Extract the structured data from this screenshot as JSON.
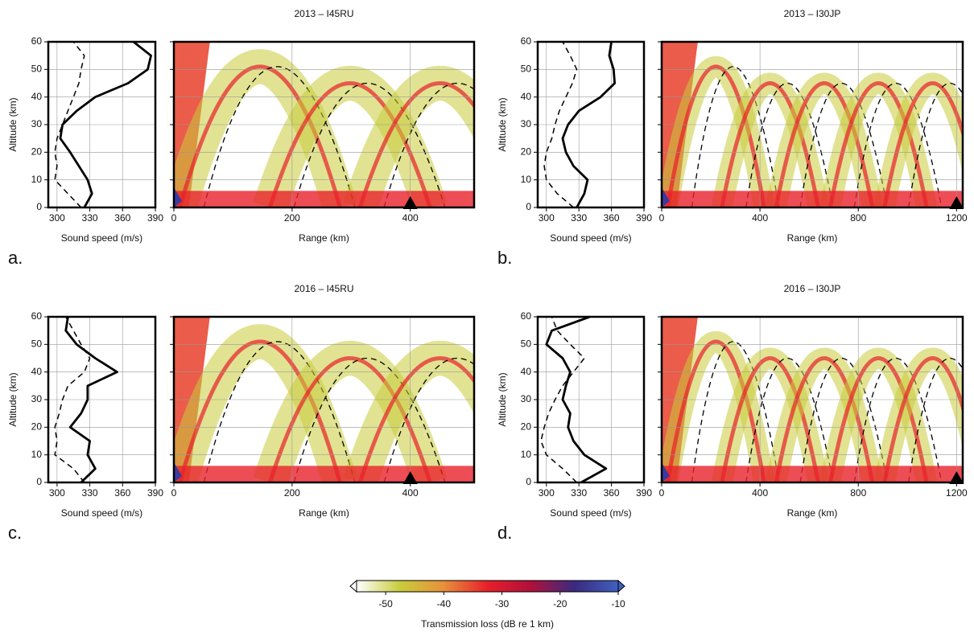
{
  "chart_data": [
    {
      "type": "line",
      "xlabel": "Sound speed (m/s)",
      "ylabel": "Altitude (km)",
      "xlim": [
        292,
        390
      ],
      "xticks": [
        300,
        330,
        360,
        390
      ],
      "ylim": [
        0,
        60
      ],
      "yticks": [
        0,
        10,
        20,
        30,
        40,
        50,
        60
      ],
      "grid": true,
      "y": [
        0,
        5,
        10,
        15,
        20,
        25,
        30,
        35,
        40,
        45,
        50,
        55,
        60
      ],
      "series": [
        {
          "color": "#000000",
          "dash": false,
          "values": [
            325,
            332,
            328,
            320,
            312,
            303,
            305,
            318,
            335,
            365,
            383,
            386,
            370
          ]
        },
        {
          "color": "#000000",
          "dash": true,
          "values": [
            322,
            310,
            298,
            300,
            298,
            300,
            305,
            310,
            315,
            320,
            322,
            325,
            315
          ]
        }
      ]
    },
    {
      "type": "heatmap",
      "title": "2013 – I45RU",
      "label": "a.",
      "xlabel": "Range (km)",
      "xlim": [
        0,
        508
      ],
      "xticks": [
        0,
        200,
        400
      ],
      "ylim": [
        0,
        60
      ],
      "yticks": [
        0,
        10,
        20,
        30,
        40,
        50,
        60
      ],
      "grid": true,
      "station": 400
    },
    {
      "type": "line",
      "xlabel": "Sound speed (m/s)",
      "ylabel": "Altitude (km)",
      "xlim": [
        292,
        390
      ],
      "xticks": [
        300,
        330,
        360,
        390
      ],
      "ylim": [
        0,
        60
      ],
      "yticks": [
        0,
        10,
        20,
        30,
        40,
        50,
        60
      ],
      "grid": true,
      "y": [
        0,
        5,
        10,
        15,
        20,
        25,
        30,
        35,
        40,
        45,
        50,
        55,
        60
      ],
      "series": [
        {
          "color": "#000000",
          "dash": false,
          "values": [
            328,
            335,
            338,
            325,
            318,
            315,
            320,
            330,
            350,
            363,
            362,
            358,
            360
          ]
        },
        {
          "color": "#000000",
          "dash": true,
          "values": [
            325,
            310,
            300,
            298,
            300,
            305,
            308,
            312,
            318,
            324,
            328,
            322,
            315
          ]
        }
      ]
    },
    {
      "type": "heatmap",
      "title": "2013 – I30JP",
      "label": "b.",
      "xlabel": "Range (km)",
      "xlim": [
        0,
        1225
      ],
      "xticks": [
        0,
        400,
        800,
        1200
      ],
      "ylim": [
        0,
        60
      ],
      "yticks": [
        0,
        10,
        20,
        30,
        40,
        50,
        60
      ],
      "grid": true,
      "station": 1200
    },
    {
      "type": "line",
      "xlabel": "Sound speed (m/s)",
      "ylabel": "Altitude (km)",
      "xlim": [
        292,
        390
      ],
      "xticks": [
        300,
        330,
        360,
        390
      ],
      "ylim": [
        0,
        60
      ],
      "yticks": [
        0,
        10,
        20,
        30,
        40,
        50,
        60
      ],
      "grid": true,
      "y": [
        0,
        5,
        10,
        15,
        20,
        25,
        30,
        35,
        40,
        45,
        50,
        55,
        60
      ],
      "series": [
        {
          "color": "#000000",
          "dash": false,
          "values": [
            322,
            335,
            328,
            330,
            312,
            322,
            328,
            328,
            355,
            335,
            318,
            308,
            310
          ]
        },
        {
          "color": "#000000",
          "dash": true,
          "values": [
            325,
            315,
            298,
            300,
            298,
            302,
            305,
            310,
            325,
            330,
            322,
            315,
            308
          ]
        }
      ]
    },
    {
      "type": "heatmap",
      "title": "2016 – I45RU",
      "label": "c.",
      "xlabel": "Range (km)",
      "xlim": [
        0,
        508
      ],
      "xticks": [
        0,
        200,
        400
      ],
      "ylim": [
        0,
        60
      ],
      "yticks": [
        0,
        10,
        20,
        30,
        40,
        50,
        60
      ],
      "grid": true,
      "station": 400
    },
    {
      "type": "line",
      "xlabel": "Sound speed (m/s)",
      "ylabel": "Altitude (km)",
      "xlim": [
        292,
        390
      ],
      "xticks": [
        300,
        330,
        360,
        390
      ],
      "ylim": [
        0,
        60
      ],
      "yticks": [
        0,
        10,
        20,
        30,
        40,
        50,
        60
      ],
      "grid": true,
      "y": [
        0,
        5,
        10,
        15,
        20,
        25,
        30,
        35,
        40,
        45,
        50,
        55,
        60
      ],
      "series": [
        {
          "color": "#000000",
          "dash": false,
          "values": [
            332,
            355,
            335,
            325,
            320,
            322,
            315,
            318,
            322,
            315,
            300,
            305,
            340
          ]
        },
        {
          "color": "#000000",
          "dash": true,
          "values": [
            328,
            315,
            300,
            295,
            298,
            302,
            308,
            315,
            325,
            335,
            322,
            310,
            305
          ]
        }
      ]
    },
    {
      "type": "heatmap",
      "title": "2016 – I30JP",
      "label": "d.",
      "xlabel": "Range (km)",
      "xlim": [
        0,
        1225
      ],
      "xticks": [
        0,
        400,
        800,
        1200
      ],
      "ylim": [
        0,
        60
      ],
      "yticks": [
        0,
        10,
        20,
        30,
        40,
        50,
        60
      ],
      "grid": true,
      "station": 1200
    },
    {
      "type": "colorbar",
      "xlabel": "Transmission loss (dB re 1 km)",
      "xlim": [
        -55,
        -10
      ],
      "xticks": [
        -50,
        -40,
        -30,
        -20,
        -10
      ],
      "colors": [
        "#ffffff",
        "#c8cc3a",
        "#e8903a",
        "#e8202a",
        "#b0103a",
        "#3a2a80",
        "#4060c0"
      ]
    }
  ]
}
